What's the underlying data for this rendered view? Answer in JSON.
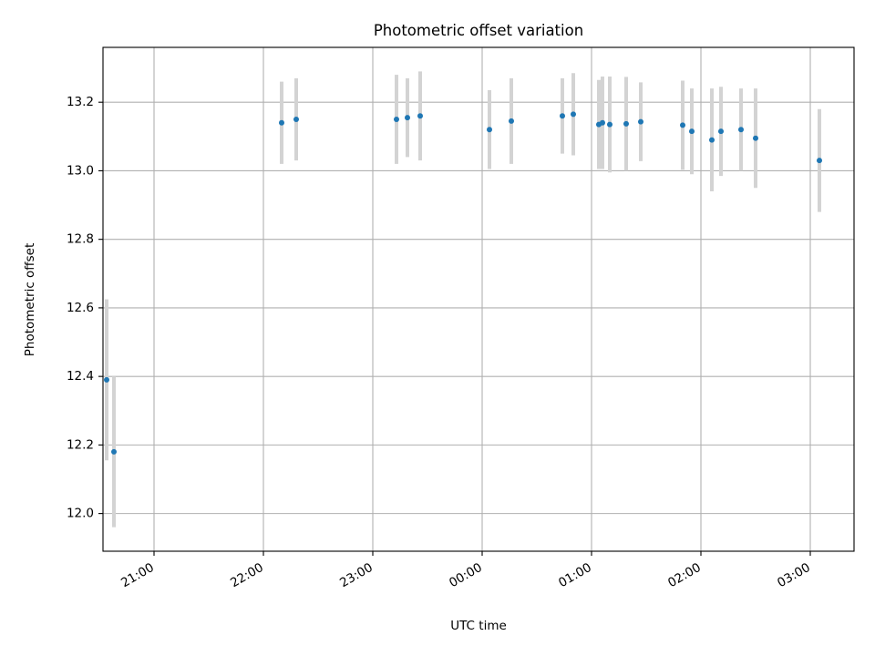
{
  "chart_data": {
    "type": "scatter",
    "title": "Photometric offset variation",
    "xlabel": "UTC time",
    "ylabel": "Photometric offset",
    "xlim": [
      "20:32",
      "03:24"
    ],
    "ylim": [
      11.89,
      13.36
    ],
    "x_ticks": [
      "21:00",
      "22:00",
      "23:00",
      "00:00",
      "01:00",
      "02:00",
      "03:00"
    ],
    "y_ticks": [
      12.0,
      12.2,
      12.4,
      12.6,
      12.8,
      13.0,
      13.2
    ],
    "grid": true,
    "legend": "none",
    "colors": {
      "marker": "#1f77b4",
      "errorbar": "#d3d3d3"
    },
    "points": [
      {
        "x": "20:34",
        "y": 12.39,
        "err": 0.235
      },
      {
        "x": "20:38",
        "y": 12.18,
        "err": 0.22
      },
      {
        "x": "22:10",
        "y": 13.14,
        "err": 0.12
      },
      {
        "x": "22:18",
        "y": 13.15,
        "err": 0.12
      },
      {
        "x": "23:13",
        "y": 13.15,
        "err": 0.13
      },
      {
        "x": "23:19",
        "y": 13.155,
        "err": 0.115
      },
      {
        "x": "23:26",
        "y": 13.16,
        "err": 0.13
      },
      {
        "x": "00:04",
        "y": 13.12,
        "err": 0.115
      },
      {
        "x": "00:16",
        "y": 13.145,
        "err": 0.125
      },
      {
        "x": "00:44",
        "y": 13.16,
        "err": 0.11
      },
      {
        "x": "00:50",
        "y": 13.165,
        "err": 0.12
      },
      {
        "x": "01:04",
        "y": 13.135,
        "err": 0.13
      },
      {
        "x": "01:06",
        "y": 13.14,
        "err": 0.135
      },
      {
        "x": "01:10",
        "y": 13.135,
        "err": 0.14
      },
      {
        "x": "01:19",
        "y": 13.137,
        "err": 0.137
      },
      {
        "x": "01:27",
        "y": 13.143,
        "err": 0.115
      },
      {
        "x": "01:50",
        "y": 13.133,
        "err": 0.13
      },
      {
        "x": "01:55",
        "y": 13.115,
        "err": 0.125
      },
      {
        "x": "02:06",
        "y": 13.09,
        "err": 0.15
      },
      {
        "x": "02:11",
        "y": 13.115,
        "err": 0.13
      },
      {
        "x": "02:22",
        "y": 13.12,
        "err": 0.12
      },
      {
        "x": "02:30",
        "y": 13.095,
        "err": 0.145
      },
      {
        "x": "03:05",
        "y": 13.03,
        "err": 0.15
      }
    ]
  }
}
